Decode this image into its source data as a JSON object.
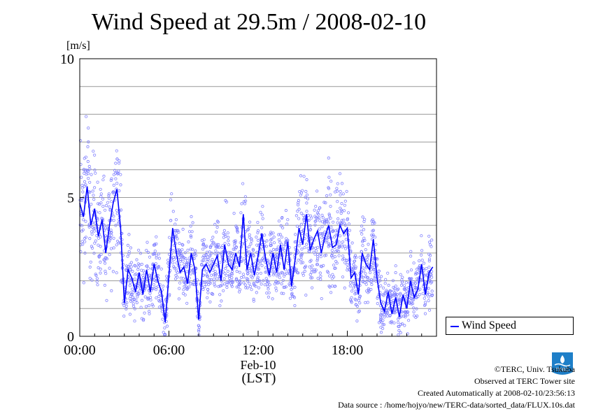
{
  "title": "Wind Speed at 29.5m / 2008-02-10",
  "yunit": "[m/s]",
  "date_label": "Feb-10",
  "xunit": "(LST)",
  "legend": {
    "label": "Wind Speed"
  },
  "credits": {
    "line1": "©TERC, Univ. Tsukuba",
    "line2": "Observed at TERC Tower site",
    "line3": "Created Automatically at 2008-02-10/23:56:13",
    "line4": "Data source : /home/hojyo/new/TERC-data/sorted_data/FLUX.10s.dat"
  },
  "logo": {
    "icon": "terc-logo",
    "text": "TERC"
  },
  "colors": {
    "line": "#0000ff",
    "points": "#8080ff",
    "grid": "#999999"
  },
  "chart_data": {
    "type": "line",
    "xlabel": "",
    "ylabel": "[m/s]",
    "x_unit": "hours LST",
    "xlim": [
      0,
      24
    ],
    "ylim": [
      0,
      10
    ],
    "x_ticks": [
      {
        "value": 0,
        "label": "00:00"
      },
      {
        "value": 6,
        "label": "06:00"
      },
      {
        "value": 12,
        "label": "12:00"
      },
      {
        "value": 18,
        "label": "18:00"
      }
    ],
    "y_ticks": [
      {
        "value": 0,
        "label": "0"
      },
      {
        "value": 5,
        "label": "5"
      },
      {
        "value": 10,
        "label": "10"
      }
    ],
    "grid": true,
    "legend_position": "right",
    "series": [
      {
        "name": "Wind Speed",
        "x": [
          0.0,
          0.25,
          0.5,
          0.75,
          1.0,
          1.25,
          1.5,
          1.75,
          2.0,
          2.25,
          2.5,
          2.75,
          3.0,
          3.25,
          3.5,
          3.75,
          4.0,
          4.25,
          4.5,
          4.75,
          5.0,
          5.25,
          5.5,
          5.75,
          6.0,
          6.25,
          6.5,
          6.75,
          7.0,
          7.25,
          7.5,
          7.75,
          8.0,
          8.25,
          8.5,
          8.75,
          9.0,
          9.25,
          9.5,
          9.75,
          10.0,
          10.25,
          10.5,
          10.75,
          11.0,
          11.25,
          11.5,
          11.75,
          12.0,
          12.25,
          12.5,
          12.75,
          13.0,
          13.25,
          13.5,
          13.75,
          14.0,
          14.25,
          14.5,
          14.75,
          15.0,
          15.25,
          15.5,
          15.75,
          16.0,
          16.25,
          16.5,
          16.75,
          17.0,
          17.25,
          17.5,
          17.75,
          18.0,
          18.25,
          18.5,
          18.75,
          19.0,
          19.25,
          19.5,
          19.75,
          20.0,
          20.25,
          20.5,
          20.75,
          21.0,
          21.25,
          21.5,
          21.75,
          22.0,
          22.25,
          22.5,
          22.75,
          23.0,
          23.25,
          23.5,
          23.75
        ],
        "values": [
          4.8,
          4.3,
          5.4,
          4.0,
          4.6,
          3.6,
          4.2,
          3.0,
          4.0,
          4.8,
          5.3,
          3.9,
          1.2,
          2.4,
          2.1,
          1.6,
          2.3,
          1.5,
          2.4,
          1.6,
          2.6,
          2.0,
          1.6,
          0.5,
          2.2,
          3.9,
          3.0,
          2.3,
          2.5,
          1.9,
          3.0,
          2.4,
          0.6,
          2.4,
          2.6,
          2.3,
          2.6,
          2.9,
          2.0,
          3.3,
          2.6,
          2.4,
          3.0,
          2.5,
          4.4,
          2.4,
          3.0,
          2.2,
          2.9,
          3.7,
          2.8,
          2.2,
          3.0,
          2.3,
          3.3,
          2.4,
          3.4,
          1.8,
          2.8,
          3.9,
          3.3,
          4.4,
          3.1,
          3.5,
          3.8,
          3.0,
          3.6,
          4.0,
          3.2,
          3.3,
          4.0,
          3.7,
          3.9,
          2.1,
          2.3,
          1.5,
          3.0,
          2.6,
          2.4,
          3.5,
          2.1,
          1.2,
          0.9,
          1.6,
          0.8,
          1.4,
          0.7,
          1.5,
          1.0,
          2.0,
          1.4,
          1.7,
          2.6,
          1.5,
          2.3,
          2.5
        ]
      }
    ]
  }
}
